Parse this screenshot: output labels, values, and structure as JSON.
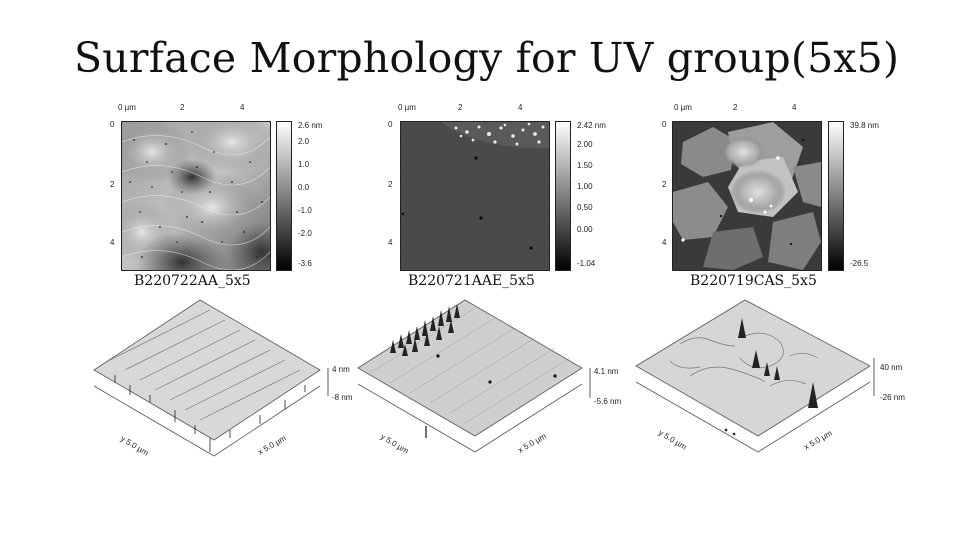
{
  "slide": {
    "title": "Surface Morphology for UV group(5x5)"
  },
  "axis_ticks": [
    "0 µm",
    "2",
    "4"
  ],
  "y_ticks": [
    "0",
    "2",
    "4"
  ],
  "samples": [
    {
      "name": "B220722AA_5x5",
      "colorbar": [
        "2.6 nm",
        "2.0",
        "1.0",
        "0.0",
        "-1.0",
        "-2.0",
        "-3.6"
      ],
      "z_top": "4 nm",
      "z_bottom": "-8 nm",
      "x_axis": "x 5.0 µm",
      "y_axis": "y 5.0 µm"
    },
    {
      "name": "B220721AAE_5x5",
      "colorbar": [
        "2.42 nm",
        "2.00",
        "1.50",
        "1.00",
        "0.50",
        "0.00",
        "-1.04"
      ],
      "z_top": "4.1 nm",
      "z_bottom": "-5.6 nm",
      "x_axis": "x 5.0 µm",
      "y_axis": "y 5.0 µm"
    },
    {
      "name": "B220719CAS_5x5",
      "colorbar": [
        "39.8 nm",
        "-26.5"
      ],
      "z_top": "40 nm",
      "z_bottom": "-26 nm",
      "x_axis": "x 5.0 µm",
      "y_axis": "y 5.0 µm"
    }
  ]
}
